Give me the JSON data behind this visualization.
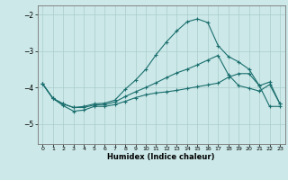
{
  "xlabel": "Humidex (Indice chaleur)",
  "bg_color": "#cce8e8",
  "grid_color": "#aacccc",
  "line_color": "#1a6e6e",
  "xlim": [
    -0.5,
    23.5
  ],
  "ylim": [
    -5.55,
    -1.75
  ],
  "yticks": [
    -5,
    -4,
    -3,
    -2
  ],
  "xticks": [
    0,
    1,
    2,
    3,
    4,
    5,
    6,
    7,
    8,
    9,
    10,
    11,
    12,
    13,
    14,
    15,
    16,
    17,
    18,
    19,
    20,
    21,
    22,
    23
  ],
  "line1_x": [
    0,
    1,
    2,
    3,
    4,
    5,
    6,
    7,
    8,
    9,
    10,
    11,
    12,
    13,
    14,
    15,
    16,
    17,
    18,
    19,
    20,
    21,
    22,
    23
  ],
  "line1_y": [
    -3.9,
    -4.3,
    -4.45,
    -4.55,
    -4.52,
    -4.45,
    -4.43,
    -4.35,
    -4.05,
    -3.8,
    -3.5,
    -3.1,
    -2.75,
    -2.45,
    -2.2,
    -2.12,
    -2.22,
    -2.85,
    -3.15,
    -3.3,
    -3.5,
    -3.95,
    -3.85,
    -4.45
  ],
  "line2_x": [
    0,
    1,
    2,
    3,
    4,
    5,
    6,
    7,
    8,
    9,
    10,
    11,
    12,
    13,
    14,
    15,
    16,
    17,
    18,
    19,
    20,
    21,
    22,
    23
  ],
  "line2_y": [
    -3.9,
    -4.3,
    -4.45,
    -4.55,
    -4.55,
    -4.48,
    -4.47,
    -4.4,
    -4.25,
    -4.12,
    -4.0,
    -3.87,
    -3.73,
    -3.6,
    -3.5,
    -3.38,
    -3.25,
    -3.12,
    -3.65,
    -3.95,
    -4.02,
    -4.1,
    -3.92,
    -4.45
  ],
  "line3_x": [
    0,
    1,
    2,
    3,
    4,
    5,
    6,
    7,
    8,
    9,
    10,
    11,
    12,
    13,
    14,
    15,
    16,
    17,
    18,
    19,
    20,
    21,
    22,
    23
  ],
  "line3_y": [
    -3.9,
    -4.3,
    -4.5,
    -4.65,
    -4.62,
    -4.52,
    -4.52,
    -4.47,
    -4.38,
    -4.28,
    -4.2,
    -4.15,
    -4.12,
    -4.08,
    -4.03,
    -3.98,
    -3.93,
    -3.88,
    -3.72,
    -3.62,
    -3.62,
    -3.95,
    -4.52,
    -4.52
  ]
}
